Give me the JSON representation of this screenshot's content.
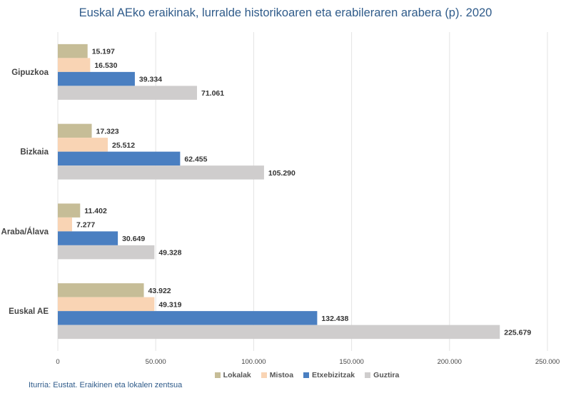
{
  "chart_data": {
    "type": "bar",
    "orientation": "horizontal",
    "title": "Euskal AEko eraikinak, lurralde historikoaren eta erabileraren arabera (p). 2020",
    "categories": [
      "Gipuzkoa",
      "Bizkaia",
      "Araba/Álava",
      "Euskal AE"
    ],
    "series": [
      {
        "name": "Lokalak",
        "color": "#c6bd97",
        "values": [
          15197,
          17323,
          11402,
          43922
        ],
        "labels": [
          "15.197",
          "17.323",
          "11.402",
          "43.922"
        ]
      },
      {
        "name": "Mistoa",
        "color": "#f9d4b4",
        "values": [
          16530,
          25512,
          7277,
          49319
        ],
        "labels": [
          "16.530",
          "25.512",
          "7.277",
          "49.319"
        ]
      },
      {
        "name": "Etxebizitzak",
        "color": "#4a7fc1",
        "values": [
          39334,
          62455,
          30649,
          132438
        ],
        "labels": [
          "39.334",
          "62.455",
          "30.649",
          "132.438"
        ]
      },
      {
        "name": "Guztira",
        "color": "#cfcdcd",
        "values": [
          71061,
          105290,
          49328,
          225679
        ],
        "labels": [
          "71.061",
          "105.290",
          "49.328",
          "225.679"
        ]
      }
    ],
    "xlim": [
      0,
      250000
    ],
    "x_ticks": [
      0,
      50000,
      100000,
      150000,
      200000,
      250000
    ],
    "x_tick_labels": [
      "0",
      "50.000",
      "100.000",
      "150.000",
      "200.000",
      "250.000"
    ],
    "grid": true,
    "legend_position": "bottom",
    "xlabel": "",
    "ylabel": ""
  },
  "source_note": "Iturria: Eustat. Eraikinen eta lokalen zentsua"
}
